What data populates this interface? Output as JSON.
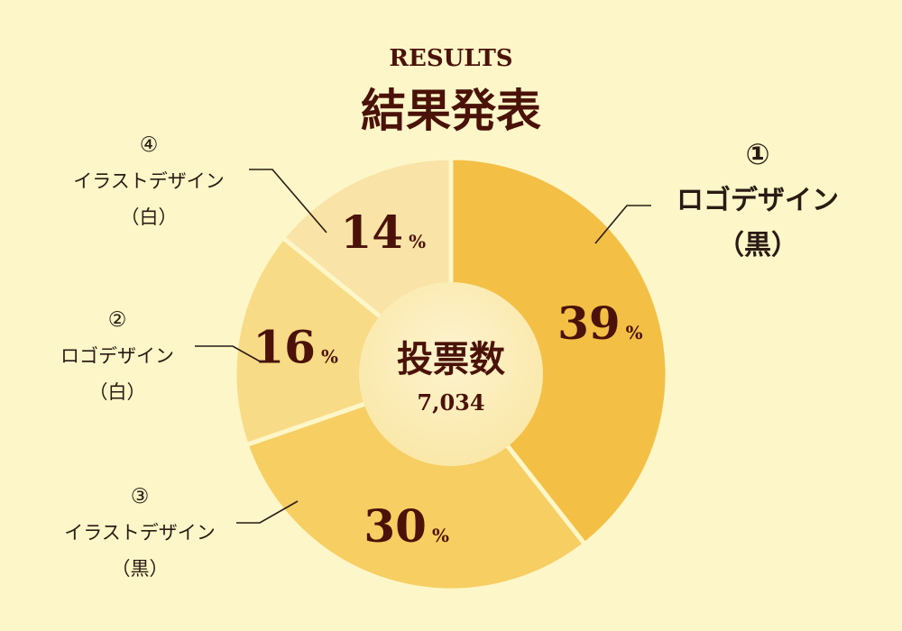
{
  "header": {
    "subtitle": "RESULTS",
    "title": "結果発表"
  },
  "chart_data": {
    "type": "pie",
    "donut": true,
    "center": {
      "label": "投票数",
      "value": "7,034"
    },
    "percent_symbol": "%",
    "slices": [
      {
        "number": "①",
        "name": "ロゴデザイン",
        "variant": "（黒）",
        "value": 39,
        "color": "#f3bf45"
      },
      {
        "number": "③",
        "name": "イラストデザイン",
        "variant": "（黒）",
        "value": 30,
        "color": "#f6ce62"
      },
      {
        "number": "②",
        "name": "ロゴデザイン",
        "variant": "（白）",
        "value": 16,
        "color": "#f8db86"
      },
      {
        "number": "④",
        "name": "イラストデザイン",
        "variant": "（白）",
        "value": 14,
        "color": "#f9e3a6"
      }
    ]
  }
}
